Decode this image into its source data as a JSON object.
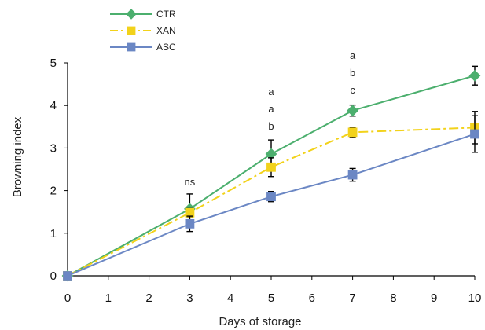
{
  "chart_data": {
    "type": "line",
    "title": "",
    "xlabel": "Days of storage",
    "ylabel": "Browning index",
    "x": [
      0,
      3,
      5,
      7,
      10
    ],
    "xlim": [
      0,
      10
    ],
    "ylim": [
      0,
      5
    ],
    "xticks": [
      "0",
      "1",
      "2",
      "3",
      "4",
      "5",
      "6",
      "7",
      "8",
      "9",
      "10"
    ],
    "yticks": [
      "0",
      "1",
      "2",
      "3",
      "4",
      "5"
    ],
    "grid": false,
    "legend": {
      "placement": "top-left",
      "entries": [
        "CTR",
        "XAN",
        "ASC"
      ]
    },
    "series": [
      {
        "name": "CTR",
        "values": [
          0,
          1.57,
          2.86,
          3.88,
          4.7
        ],
        "errors": [
          0,
          0.35,
          0.33,
          0.13,
          0.22
        ],
        "color": "#4caf6e",
        "marker": "diamond",
        "line": "solid"
      },
      {
        "name": "XAN",
        "values": [
          0,
          1.48,
          2.55,
          3.37,
          3.48
        ],
        "errors": [
          0,
          0.1,
          0.22,
          0.12,
          0.38
        ],
        "color": "#f2d21b",
        "marker": "square",
        "line": "dashdot"
      },
      {
        "name": "ASC",
        "values": [
          0,
          1.22,
          1.86,
          2.37,
          3.33
        ],
        "errors": [
          0,
          0.18,
          0.12,
          0.15,
          0.43
        ],
        "color": "#6b87c4",
        "marker": "square",
        "line": "solid"
      }
    ],
    "annotations": [
      {
        "x": 3,
        "labels": [
          "ns"
        ]
      },
      {
        "x": 5,
        "labels": [
          "a",
          "a",
          "b"
        ]
      },
      {
        "x": 7,
        "labels": [
          "a",
          "b",
          "c"
        ]
      }
    ]
  }
}
